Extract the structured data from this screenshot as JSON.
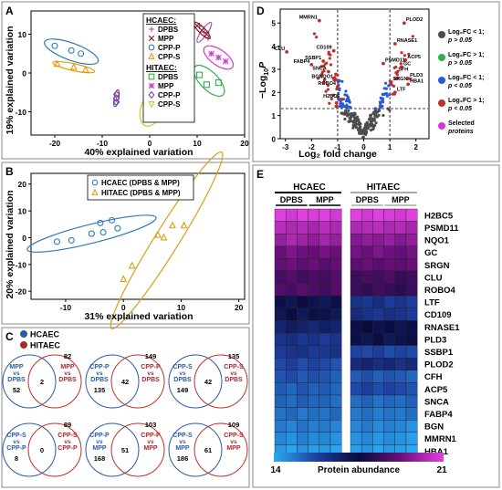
{
  "panels": {
    "A": {
      "label": "A",
      "chart_data": {
        "type": "scatter",
        "title": "",
        "xlabel": "40% explained variation",
        "ylabel": "19% explained variation",
        "xlim": [
          -25,
          20
        ],
        "ylim": [
          -16,
          16
        ],
        "xticks": [
          -20,
          -10,
          0,
          10,
          20
        ],
        "yticks": [
          -10,
          0,
          10
        ],
        "grid": false,
        "legend": {
          "placement": "top-right",
          "group_titles": [
            "HCAEC:",
            "HITAEC:"
          ],
          "entries": [
            "DPBS",
            "MPP",
            "CPP-P",
            "CPP-S",
            "DPBS",
            "MPP",
            "CPP-P",
            "CPP-S"
          ]
        },
        "series": [
          {
            "group": 0,
            "label_index": 0,
            "color": "#9b59b6",
            "marker": "plus",
            "ellipse": {
              "cx": 11.5,
              "cy": 10.5,
              "rx": 2.5,
              "ry": 0.8,
              "angle": 55
            },
            "points": [
              [
                10.5,
                12.0
              ],
              [
                11.5,
                10.5
              ],
              [
                12.3,
                9.0
              ]
            ]
          },
          {
            "group": 0,
            "label_index": 1,
            "color": "#8b1a1a",
            "marker": "x",
            "ellipse": {
              "cx": 11.0,
              "cy": 11.0,
              "rx": 2.4,
              "ry": 0.8,
              "angle": -45
            },
            "points": [
              [
                10.0,
                12.2
              ],
              [
                11.0,
                11.0
              ],
              [
                12.0,
                10.0
              ]
            ]
          },
          {
            "group": 0,
            "label_index": 2,
            "color": "#2b7bba",
            "marker": "circle",
            "ellipse": {
              "cx": -16.5,
              "cy": 5.5,
              "rx": 6.0,
              "ry": 2.2,
              "angle": -20
            },
            "points": [
              [
                -20.0,
                7.0
              ],
              [
                -16.5,
                5.8
              ],
              [
                -14.5,
                5.0
              ]
            ]
          },
          {
            "group": 0,
            "label_index": 3,
            "color": "#e39b0c",
            "marker": "triangle",
            "ellipse": {
              "cx": -16.0,
              "cy": 1.5,
              "rx": 4.5,
              "ry": 0.9,
              "angle": -12
            },
            "points": [
              [
                -19.5,
                2.3
              ],
              [
                -16.0,
                1.5
              ],
              [
                -13.5,
                0.8
              ]
            ]
          },
          {
            "group": 1,
            "label_index": 4,
            "color": "#2db24a",
            "marker": "square",
            "ellipse": {
              "cx": 12.5,
              "cy": -2.0,
              "rx": 4.2,
              "ry": 2.3,
              "angle": -45
            },
            "points": [
              [
                10.5,
                -0.5
              ],
              [
                12.0,
                -3.0
              ],
              [
                14.5,
                -2.5
              ]
            ]
          },
          {
            "group": 1,
            "label_index": 5,
            "color": "#d13ad1",
            "marker": "asterisk",
            "ellipse": {
              "cx": 14.5,
              "cy": 4.0,
              "rx": 3.6,
              "ry": 2.0,
              "angle": -35
            },
            "points": [
              [
                13.0,
                5.0
              ],
              [
                14.5,
                4.0
              ],
              [
                16.0,
                3.0
              ]
            ]
          },
          {
            "group": 1,
            "label_index": 6,
            "color": "#7b3fa0",
            "marker": "diamond",
            "ellipse": {
              "cx": -7.0,
              "cy": -6.5,
              "rx": 1.8,
              "ry": 0.6,
              "angle": 80
            },
            "points": [
              [
                -7.0,
                -5.5
              ],
              [
                -7.0,
                -6.5
              ],
              [
                -7.0,
                -7.5
              ]
            ]
          },
          {
            "group": 1,
            "label_index": 7,
            "color": "#c8c81e",
            "marker": "triangle-down",
            "ellipse": {
              "cx": 0.5,
              "cy": -9.0,
              "rx": 4.0,
              "ry": 2.8,
              "angle": 70
            },
            "points": [
              [
                0.0,
                -7.0
              ],
              [
                0.5,
                -10.0
              ],
              [
                2.0,
                -11.0
              ]
            ]
          }
        ]
      }
    },
    "B": {
      "label": "B",
      "chart_data": {
        "type": "scatter",
        "title": "",
        "xlabel": "31% explained variation",
        "ylabel": "20% explained variation",
        "xlim": [
          -16,
          21
        ],
        "ylim": [
          -23,
          24
        ],
        "xticks": [
          -10,
          0,
          10,
          20
        ],
        "yticks": [
          -20,
          -10,
          0,
          10,
          20
        ],
        "grid": false,
        "legend": {
          "placement": "top",
          "entries": [
            "HCAEC (DPBS & MPP)",
            "HITAEC (DPBS & MPP)"
          ]
        },
        "series": [
          {
            "label_index": 0,
            "color": "#2b7bba",
            "marker": "circle",
            "ellipse": {
              "cx": -5.5,
              "cy": 1.5,
              "rx": 11.5,
              "ry": 3.5,
              "angle": 14
            },
            "points": [
              [
                -11.5,
                -1.5
              ],
              [
                -9.0,
                -1.0
              ],
              [
                -5.5,
                1.5
              ],
              [
                -4.0,
                5.5
              ],
              [
                -3.5,
                2.0
              ],
              [
                -2.0,
                6.5
              ],
              [
                -1.0,
                3.5
              ]
            ]
          },
          {
            "label_index": 1,
            "color": "#d4a017",
            "marker": "triangle",
            "ellipse": {
              "cx": 7.5,
              "cy": -1.0,
              "rx": 18.0,
              "ry": 4.5,
              "angle": 58
            },
            "points": [
              [
                0.0,
                -15.5
              ],
              [
                1.5,
                -10.5
              ],
              [
                6.0,
                1.0
              ],
              [
                7.0,
                0.0
              ],
              [
                8.5,
                4.5
              ],
              [
                10.5,
                4.5
              ]
            ]
          }
        ]
      }
    },
    "C": {
      "label": "C",
      "legend": [
        "HCAEC",
        "HITAEC"
      ],
      "legend_colors": [
        "#2b5aa8",
        "#a82b2b"
      ],
      "venns": [
        {
          "left_line1": "MPP",
          "left_line2": "vs",
          "left_line3": "DPBS",
          "left_count": "52",
          "right_line1": "MPP",
          "right_line2": "vs",
          "right_line3": "DPBS",
          "right_count": "82",
          "overlap": "2"
        },
        {
          "left_line1": "CPP-P",
          "left_line2": "vs",
          "left_line3": "DPBS",
          "left_count": "135",
          "right_line1": "CPP-P",
          "right_line2": "vs",
          "right_line3": "DPBS",
          "right_count": "149",
          "overlap": "42"
        },
        {
          "left_line1": "CPP-S",
          "left_line2": "vs",
          "left_line3": "DPBS",
          "left_count": "149",
          "right_line1": "CPP-S",
          "right_line2": "vs",
          "right_line3": "DPBS",
          "right_count": "135",
          "overlap": "42"
        },
        {
          "left_line1": "CPP-S",
          "left_line2": "vs",
          "left_line3": "CPP-P",
          "left_count": "8",
          "right_line1": "CPP-S",
          "right_line2": "vs",
          "right_line3": "CPP-P",
          "right_count": "89",
          "overlap": "0"
        },
        {
          "left_line1": "CPP-P",
          "left_line2": "vs",
          "left_line3": "MPP",
          "left_count": "168",
          "right_line1": "CPP-P",
          "right_line2": "vs",
          "right_line3": "MPP",
          "right_count": "103",
          "overlap": "51"
        },
        {
          "left_line1": "CPP-S",
          "left_line2": "vs",
          "left_line3": "MPP",
          "left_count": "186",
          "right_line1": "CPP-S",
          "right_line2": "vs",
          "right_line3": "MPP",
          "right_count": "109",
          "overlap": "61"
        }
      ]
    },
    "D": {
      "label": "D",
      "chart_data": {
        "type": "scatter",
        "title": "",
        "xlabel": "Log₂ fold change",
        "ylabel_main": "−Log",
        "ylabel_sub": "10",
        "ylabel_tail": "P",
        "xlim": [
          -3.2,
          2.5
        ],
        "ylim": [
          0,
          5.6
        ],
        "xticks": [
          -3,
          -2,
          -1,
          0,
          1,
          2
        ],
        "yticks": [
          0,
          1,
          2,
          3,
          4,
          5
        ],
        "thresholds": {
          "fc": 1,
          "p_line": 1.3
        },
        "legend": {
          "placement": "right",
          "entries": [
            {
              "line1": "Log₂FC < 1;",
              "line2": "p > 0.05",
              "color": "#4d4d4d"
            },
            {
              "line1": "Log₂FC > 1;",
              "line2": "p > 0.05",
              "color": "#2db24a"
            },
            {
              "line1": "Log₂FC < 1;",
              "line2": "p < 0.05",
              "color": "#2b5ad1"
            },
            {
              "line1": "Log₂FC > 1;",
              "line2": "p < 0.05",
              "color": "#c0302b"
            },
            {
              "line1": "Selected",
              "line2": "proteins",
              "color": "#d13ad1"
            }
          ]
        },
        "labeled_proteins": [
          {
            "name": "MMRN1",
            "x": -1.7,
            "y": 5.1
          },
          {
            "name": "CLU",
            "x": -2.95,
            "y": 3.75
          },
          {
            "name": "FABP4",
            "x": -2.0,
            "y": 3.2
          },
          {
            "name": "SSBP1",
            "x": -1.55,
            "y": 3.35
          },
          {
            "name": "CD109",
            "x": -1.15,
            "y": 3.8
          },
          {
            "name": "SNCA",
            "x": -1.35,
            "y": 2.9
          },
          {
            "name": "BGN",
            "x": -1.5,
            "y": 2.55
          },
          {
            "name": "NQO1",
            "x": -1.1,
            "y": 2.55
          },
          {
            "name": "ROBO4",
            "x": -1.0,
            "y": 2.25
          },
          {
            "name": "H2BC5",
            "x": -0.85,
            "y": 1.7
          },
          {
            "name": "PLOD2",
            "x": 1.55,
            "y": 5.0
          },
          {
            "name": "RNASE1",
            "x": 1.2,
            "y": 4.1
          },
          {
            "name": "ACP5",
            "x": 1.6,
            "y": 3.4
          },
          {
            "name": "PSMD11",
            "x": 0.75,
            "y": 3.25
          },
          {
            "name": "GC",
            "x": 1.45,
            "y": 3.1
          },
          {
            "name": "SFH",
            "x": 1.25,
            "y": 2.85
          },
          {
            "name": "PLD3",
            "x": 1.7,
            "y": 2.6
          },
          {
            "name": "HBA1",
            "x": 1.7,
            "y": 2.35
          },
          {
            "name": "SRGN",
            "x": 1.05,
            "y": 2.45
          },
          {
            "name": "LTF",
            "x": 1.2,
            "y": 2.0
          }
        ]
      }
    },
    "E": {
      "label": "E",
      "chart_data": {
        "type": "heatmap",
        "title": "",
        "column_groups": [
          "HCAEC",
          "HITAEC"
        ],
        "column_subgroups": [
          "DPBS",
          "MPP",
          "DPBS",
          "MPP"
        ],
        "rows": [
          "H2BC5",
          "PSMD11",
          "NQO1",
          "GC",
          "SRGN",
          "CLU",
          "ROBO4",
          "LTF",
          "CD109",
          "RNASE1",
          "PLD3",
          "SSBP1",
          "PLOD2",
          "CFH",
          "ACP5",
          "SNCA",
          "FABP4",
          "BGN",
          "MMRN1",
          "HBA1"
        ],
        "n_columns_per_group": [
          6,
          6
        ],
        "values": [
          [
            21.0,
            20.8,
            21.0,
            20.9,
            21.0,
            20.8,
            21.0,
            20.8,
            21.0,
            20.9,
            20.8,
            21.0
          ],
          [
            20.4,
            20.2,
            20.3,
            20.1,
            20.4,
            20.2,
            20.2,
            20.3,
            20.4,
            20.2,
            20.3,
            20.1
          ],
          [
            19.9,
            20.2,
            20.0,
            19.8,
            20.1,
            19.9,
            19.6,
            19.8,
            19.7,
            19.9,
            19.6,
            19.8
          ],
          [
            19.2,
            19.5,
            19.3,
            19.1,
            19.4,
            19.2,
            19.4,
            19.2,
            19.5,
            19.3,
            19.1,
            19.4
          ],
          [
            19.1,
            19.3,
            19.0,
            19.2,
            18.9,
            19.1,
            19.0,
            19.2,
            18.9,
            19.1,
            19.0,
            19.2
          ],
          [
            18.6,
            18.8,
            18.5,
            18.7,
            18.6,
            18.8,
            18.4,
            18.6,
            18.5,
            18.7,
            18.3,
            18.5
          ],
          [
            18.8,
            18.6,
            18.9,
            18.7,
            18.5,
            18.8,
            18.4,
            18.2,
            18.5,
            18.3,
            18.1,
            18.4
          ],
          [
            17.3,
            17.1,
            17.4,
            17.2,
            17.0,
            17.3,
            16.2,
            16.0,
            16.3,
            15.9,
            16.1,
            15.8
          ],
          [
            17.1,
            17.4,
            17.0,
            17.3,
            17.2,
            17.0,
            16.4,
            16.2,
            16.0,
            16.3,
            16.1,
            15.9
          ],
          [
            16.6,
            16.9,
            16.7,
            16.5,
            16.8,
            16.6,
            17.3,
            17.5,
            17.2,
            17.4,
            17.1,
            17.3
          ],
          [
            16.1,
            16.3,
            16.0,
            16.2,
            15.9,
            16.1,
            17.3,
            17.1,
            17.4,
            17.0,
            17.2,
            17.3
          ],
          [
            15.9,
            16.1,
            16.2,
            15.9,
            16.0,
            16.2,
            15.7,
            15.6,
            15.8,
            15.5,
            15.7,
            15.6
          ],
          [
            15.6,
            15.8,
            15.5,
            15.7,
            15.6,
            15.4,
            16.4,
            16.6,
            16.3,
            16.5,
            16.2,
            16.4
          ],
          [
            15.4,
            15.6,
            15.3,
            15.5,
            15.4,
            15.2,
            15.3,
            15.5,
            15.2,
            15.4,
            15.3,
            15.1
          ],
          [
            15.3,
            15.1,
            15.4,
            15.2,
            15.3,
            15.1,
            15.6,
            15.8,
            15.5,
            15.7,
            15.6,
            15.4
          ],
          [
            15.2,
            15.0,
            15.3,
            15.1,
            15.2,
            15.0,
            15.0,
            15.2,
            14.9,
            15.1,
            15.0,
            15.2
          ],
          [
            14.9,
            15.1,
            14.8,
            15.0,
            14.9,
            15.1,
            14.8,
            15.0,
            14.7,
            14.9,
            14.8,
            15.0
          ],
          [
            14.8,
            14.6,
            14.9,
            14.7,
            14.8,
            14.6,
            14.6,
            14.8,
            14.5,
            14.7,
            14.6,
            14.4
          ],
          [
            14.6,
            14.4,
            14.7,
            14.5,
            14.6,
            14.4,
            14.4,
            14.6,
            14.3,
            14.5,
            14.4,
            14.2
          ],
          [
            14.3,
            14.1,
            14.4,
            14.2,
            14.3,
            14.1,
            14.2,
            14.4,
            14.1,
            14.3,
            14.2,
            14.0
          ]
        ],
        "colorbar": {
          "label": "Protein abundance",
          "min": 14,
          "max": 21,
          "colors": [
            "#2aaaf2",
            "#1e3fa0",
            "#0a0a3c",
            "#6b0f7a",
            "#e040e0"
          ]
        }
      }
    }
  }
}
